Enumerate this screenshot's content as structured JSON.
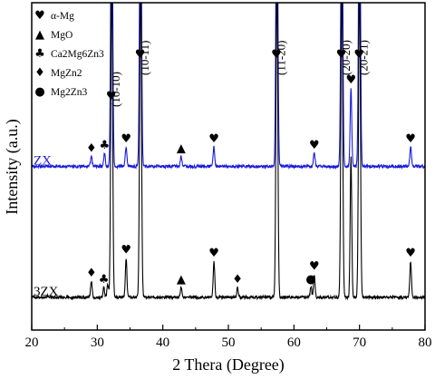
{
  "chart_data": {
    "type": "line",
    "xlabel": "2 Thera (Degree)",
    "ylabel": "Intensity (a.u.)",
    "xlim": [
      20,
      80
    ],
    "xticks": [
      20,
      30,
      40,
      50,
      60,
      70,
      80
    ],
    "xtick_labels": [
      "20",
      "30",
      "40",
      "50",
      "60",
      "70",
      "80"
    ],
    "y_ticks_shown": false,
    "legend": {
      "placement": "top-left",
      "entries": [
        {
          "symbol": "♥",
          "label": "α-Mg"
        },
        {
          "symbol": "▲",
          "label": "MgO"
        },
        {
          "symbol": "♣",
          "label": "Ca2Mg6Zn3"
        },
        {
          "symbol": "♦",
          "label": "MgZn2"
        },
        {
          "symbol": "●",
          "label": "Mg2Zn3"
        }
      ]
    },
    "peak_labels": [
      {
        "x": 32.2,
        "label": "(10-10)"
      },
      {
        "x": 36.6,
        "label": "(10-11)"
      },
      {
        "x": 57.4,
        "label": "(11-20)"
      },
      {
        "x": 67.3,
        "label": "(20-20)"
      },
      {
        "x": 70.0,
        "label": "(20-21)"
      }
    ],
    "series": [
      {
        "name": "ZX",
        "color": "#1a1adc",
        "baseline": 50,
        "peaks": [
          {
            "x": 29.1,
            "h": 3
          },
          {
            "x": 31.1,
            "h": 4
          },
          {
            "x": 32.2,
            "h": 100
          },
          {
            "x": 34.4,
            "h": 6
          },
          {
            "x": 36.6,
            "h": 100
          },
          {
            "x": 42.8,
            "h": 3
          },
          {
            "x": 47.8,
            "h": 6
          },
          {
            "x": 57.4,
            "h": 100
          },
          {
            "x": 63.1,
            "h": 4
          },
          {
            "x": 67.3,
            "h": 100
          },
          {
            "x": 68.7,
            "h": 24
          },
          {
            "x": 70.0,
            "h": 100
          },
          {
            "x": 77.8,
            "h": 6
          }
        ],
        "markers": [
          {
            "x": 29.1,
            "symbol": "♦"
          },
          {
            "x": 31.1,
            "symbol": "♣"
          },
          {
            "x": 34.4,
            "symbol": "♥"
          },
          {
            "x": 42.8,
            "symbol": "▲"
          },
          {
            "x": 47.8,
            "symbol": "♥"
          },
          {
            "x": 63.1,
            "symbol": "♥"
          },
          {
            "x": 68.7,
            "symbol": "♥"
          },
          {
            "x": 77.8,
            "symbol": "♥"
          }
        ]
      },
      {
        "name": "3ZX",
        "color": "#000000",
        "baseline": 10,
        "peaks": [
          {
            "x": 29.1,
            "h": 5
          },
          {
            "x": 31.0,
            "h": 3
          },
          {
            "x": 31.6,
            "h": 4
          },
          {
            "x": 32.2,
            "h": 100
          },
          {
            "x": 34.4,
            "h": 12
          },
          {
            "x": 36.6,
            "h": 100
          },
          {
            "x": 42.8,
            "h": 3
          },
          {
            "x": 47.8,
            "h": 11
          },
          {
            "x": 51.4,
            "h": 3
          },
          {
            "x": 57.4,
            "h": 100
          },
          {
            "x": 62.6,
            "h": 3
          },
          {
            "x": 63.1,
            "h": 7
          },
          {
            "x": 67.3,
            "h": 100
          },
          {
            "x": 68.7,
            "h": 43
          },
          {
            "x": 70.0,
            "h": 100
          },
          {
            "x": 77.8,
            "h": 11
          }
        ],
        "markers": [
          {
            "x": 29.1,
            "symbol": "♦"
          },
          {
            "x": 31.0,
            "symbol": "♣"
          },
          {
            "x": 34.4,
            "symbol": "♥"
          },
          {
            "x": 42.8,
            "symbol": "▲"
          },
          {
            "x": 47.8,
            "symbol": "♥"
          },
          {
            "x": 51.4,
            "symbol": "♦"
          },
          {
            "x": 62.6,
            "symbol": "●"
          },
          {
            "x": 63.1,
            "symbol": "♥"
          },
          {
            "x": 77.8,
            "symbol": "♥"
          }
        ]
      }
    ]
  }
}
